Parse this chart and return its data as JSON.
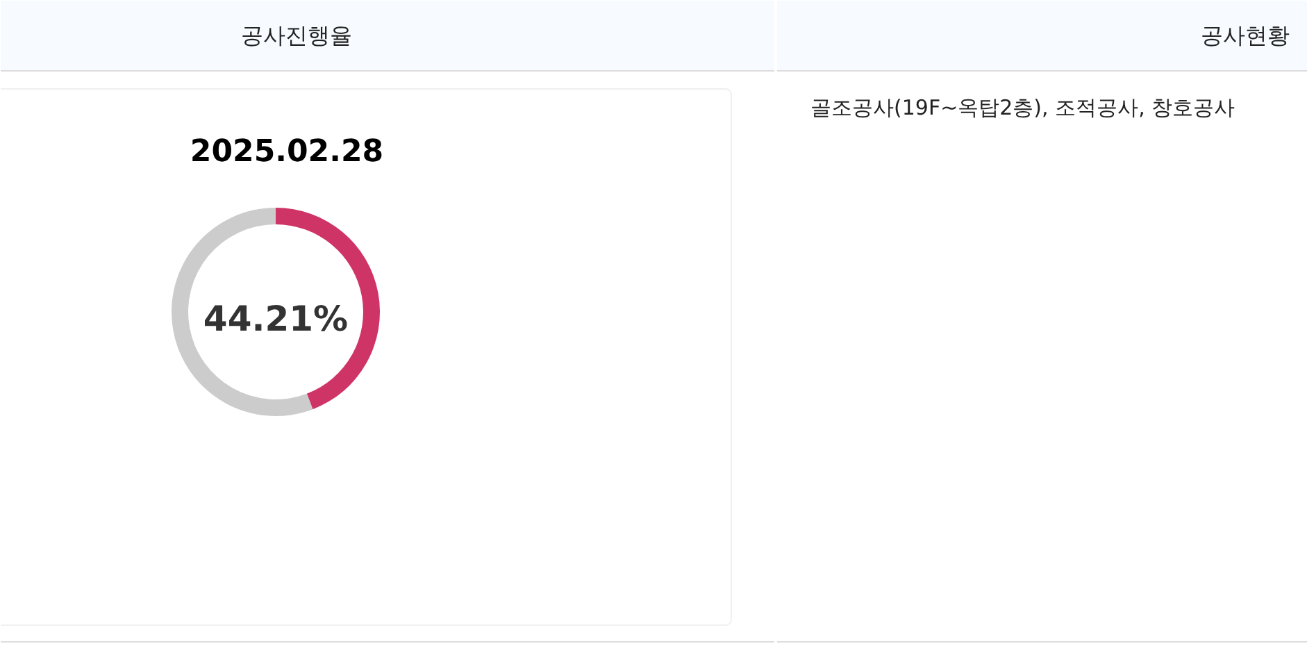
{
  "chart_data": {
    "type": "donut",
    "title": "공사진행율",
    "subtitle": "2025.02.28",
    "categories": [
      null,
      null
    ],
    "values": [
      44.21,
      55.79
    ],
    "colors": [
      "#cf3467",
      "#cccccc"
    ],
    "annotations": [
      "공사현황",
      "골조공사(19F~옥탑2층), 조적공사, 창호공사",
      "44.21%"
    ]
  }
}
